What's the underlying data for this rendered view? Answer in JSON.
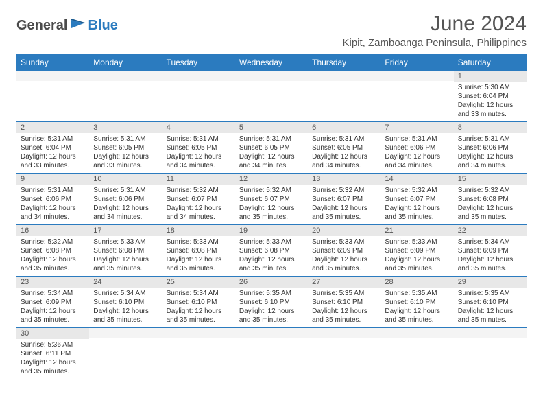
{
  "logo": {
    "textDark": "General",
    "textBlue": "Blue"
  },
  "title": "June 2024",
  "location": "Kipit, Zamboanga Peninsula, Philippines",
  "colors": {
    "headerBg": "#2b7bbf",
    "headerText": "#ffffff",
    "dayNumBg": "#e8e8e8",
    "cellBorder": "#2b7bbf",
    "bodyText": "#333333",
    "titleText": "#555555"
  },
  "dayHeaders": [
    "Sunday",
    "Monday",
    "Tuesday",
    "Wednesday",
    "Thursday",
    "Friday",
    "Saturday"
  ],
  "startDayIndex": 6,
  "daysInMonth": 30,
  "days": {
    "1": {
      "sunrise": "5:30 AM",
      "sunset": "6:04 PM",
      "daylight": "12 hours and 33 minutes."
    },
    "2": {
      "sunrise": "5:31 AM",
      "sunset": "6:04 PM",
      "daylight": "12 hours and 33 minutes."
    },
    "3": {
      "sunrise": "5:31 AM",
      "sunset": "6:05 PM",
      "daylight": "12 hours and 33 minutes."
    },
    "4": {
      "sunrise": "5:31 AM",
      "sunset": "6:05 PM",
      "daylight": "12 hours and 34 minutes."
    },
    "5": {
      "sunrise": "5:31 AM",
      "sunset": "6:05 PM",
      "daylight": "12 hours and 34 minutes."
    },
    "6": {
      "sunrise": "5:31 AM",
      "sunset": "6:05 PM",
      "daylight": "12 hours and 34 minutes."
    },
    "7": {
      "sunrise": "5:31 AM",
      "sunset": "6:06 PM",
      "daylight": "12 hours and 34 minutes."
    },
    "8": {
      "sunrise": "5:31 AM",
      "sunset": "6:06 PM",
      "daylight": "12 hours and 34 minutes."
    },
    "9": {
      "sunrise": "5:31 AM",
      "sunset": "6:06 PM",
      "daylight": "12 hours and 34 minutes."
    },
    "10": {
      "sunrise": "5:31 AM",
      "sunset": "6:06 PM",
      "daylight": "12 hours and 34 minutes."
    },
    "11": {
      "sunrise": "5:32 AM",
      "sunset": "6:07 PM",
      "daylight": "12 hours and 34 minutes."
    },
    "12": {
      "sunrise": "5:32 AM",
      "sunset": "6:07 PM",
      "daylight": "12 hours and 35 minutes."
    },
    "13": {
      "sunrise": "5:32 AM",
      "sunset": "6:07 PM",
      "daylight": "12 hours and 35 minutes."
    },
    "14": {
      "sunrise": "5:32 AM",
      "sunset": "6:07 PM",
      "daylight": "12 hours and 35 minutes."
    },
    "15": {
      "sunrise": "5:32 AM",
      "sunset": "6:08 PM",
      "daylight": "12 hours and 35 minutes."
    },
    "16": {
      "sunrise": "5:32 AM",
      "sunset": "6:08 PM",
      "daylight": "12 hours and 35 minutes."
    },
    "17": {
      "sunrise": "5:33 AM",
      "sunset": "6:08 PM",
      "daylight": "12 hours and 35 minutes."
    },
    "18": {
      "sunrise": "5:33 AM",
      "sunset": "6:08 PM",
      "daylight": "12 hours and 35 minutes."
    },
    "19": {
      "sunrise": "5:33 AM",
      "sunset": "6:08 PM",
      "daylight": "12 hours and 35 minutes."
    },
    "20": {
      "sunrise": "5:33 AM",
      "sunset": "6:09 PM",
      "daylight": "12 hours and 35 minutes."
    },
    "21": {
      "sunrise": "5:33 AM",
      "sunset": "6:09 PM",
      "daylight": "12 hours and 35 minutes."
    },
    "22": {
      "sunrise": "5:34 AM",
      "sunset": "6:09 PM",
      "daylight": "12 hours and 35 minutes."
    },
    "23": {
      "sunrise": "5:34 AM",
      "sunset": "6:09 PM",
      "daylight": "12 hours and 35 minutes."
    },
    "24": {
      "sunrise": "5:34 AM",
      "sunset": "6:10 PM",
      "daylight": "12 hours and 35 minutes."
    },
    "25": {
      "sunrise": "5:34 AM",
      "sunset": "6:10 PM",
      "daylight": "12 hours and 35 minutes."
    },
    "26": {
      "sunrise": "5:35 AM",
      "sunset": "6:10 PM",
      "daylight": "12 hours and 35 minutes."
    },
    "27": {
      "sunrise": "5:35 AM",
      "sunset": "6:10 PM",
      "daylight": "12 hours and 35 minutes."
    },
    "28": {
      "sunrise": "5:35 AM",
      "sunset": "6:10 PM",
      "daylight": "12 hours and 35 minutes."
    },
    "29": {
      "sunrise": "5:35 AM",
      "sunset": "6:10 PM",
      "daylight": "12 hours and 35 minutes."
    },
    "30": {
      "sunrise": "5:36 AM",
      "sunset": "6:11 PM",
      "daylight": "12 hours and 35 minutes."
    }
  },
  "labels": {
    "sunrise": "Sunrise:",
    "sunset": "Sunset:",
    "daylight": "Daylight:"
  }
}
